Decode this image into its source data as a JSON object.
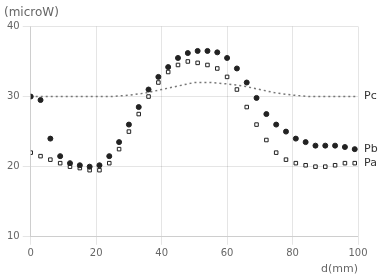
{
  "chart_data": {
    "type": "scatter",
    "title": "(microW)",
    "x_label": "d(mm)",
    "xlim": [
      0,
      100
    ],
    "ylim": [
      10,
      40
    ],
    "xticks": [
      0,
      20,
      40,
      60,
      80,
      100
    ],
    "yticks": [
      10,
      20,
      30,
      40
    ],
    "grid": true,
    "series": [
      {
        "name": "Pc",
        "type": "line",
        "line_style": "dotted",
        "color": "#777777",
        "x": [
          0,
          5,
          10,
          15,
          20,
          25,
          30,
          35,
          40,
          45,
          50,
          55,
          60,
          65,
          70,
          75,
          80,
          85,
          90,
          95,
          100
        ],
        "values": [
          30.0,
          30.0,
          30.0,
          30.0,
          30.0,
          30.0,
          30.2,
          30.5,
          31.0,
          31.5,
          32.0,
          32.0,
          31.8,
          31.5,
          31.0,
          30.5,
          30.2,
          30.0,
          30.0,
          30.0,
          30.0
        ]
      },
      {
        "name": "Pb",
        "type": "scatter",
        "marker": "circle",
        "color": "#222222",
        "x": [
          0,
          3,
          6,
          9,
          12,
          15,
          18,
          21,
          24,
          27,
          30,
          33,
          36,
          39,
          42,
          45,
          48,
          51,
          54,
          57,
          60,
          63,
          66,
          69,
          72,
          75,
          78,
          81,
          84,
          87,
          90,
          93,
          96,
          99
        ],
        "values": [
          30.0,
          29.5,
          24.0,
          21.5,
          20.5,
          20.2,
          20.0,
          20.2,
          21.5,
          23.5,
          26.0,
          28.5,
          31.0,
          32.8,
          34.2,
          35.5,
          36.2,
          36.5,
          36.5,
          36.3,
          35.5,
          34.0,
          32.0,
          29.8,
          27.5,
          26.0,
          25.0,
          24.0,
          23.5,
          23.0,
          23.0,
          23.0,
          22.8,
          22.5
        ]
      },
      {
        "name": "Pa",
        "type": "scatter",
        "marker": "open_square",
        "color": "#222222",
        "x": [
          0,
          3,
          6,
          9,
          12,
          15,
          18,
          21,
          24,
          27,
          30,
          33,
          36,
          39,
          42,
          45,
          48,
          51,
          54,
          57,
          60,
          63,
          66,
          69,
          72,
          75,
          78,
          81,
          84,
          87,
          90,
          93,
          96,
          99
        ],
        "values": [
          22.0,
          21.5,
          21.0,
          20.5,
          20.0,
          19.8,
          19.5,
          19.5,
          20.5,
          22.5,
          25.0,
          27.5,
          30.0,
          32.0,
          33.5,
          34.5,
          35.0,
          34.8,
          34.5,
          34.0,
          32.8,
          31.0,
          28.5,
          26.0,
          23.8,
          22.0,
          21.0,
          20.5,
          20.2,
          20.0,
          20.0,
          20.2,
          20.5,
          20.5
        ]
      }
    ]
  }
}
